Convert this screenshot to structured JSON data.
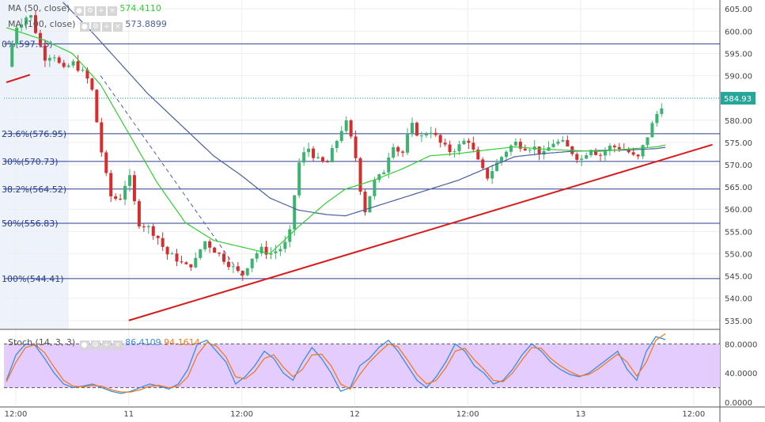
{
  "colors": {
    "up": "#26a69a",
    "up_candle": "#3cb371",
    "down": "#d32f2f",
    "ma50": "#33cc33",
    "ma100": "#4a5fa0",
    "fib": "#2a3f8f",
    "trend": "#d81b1b",
    "stoch_k": "#3a8de0",
    "stoch_d": "#f07a20",
    "stoch_band": "#e4ccff",
    "price_tag": "#26a69a"
  },
  "legend": {
    "ma50": {
      "label": "MA (50, close)",
      "value": "574.4110"
    },
    "ma100": {
      "label": "MA (100, close)",
      "value": "573.8899"
    },
    "stoch": {
      "label": "Stoch (14, 3, 3)",
      "k_value": "86.4109",
      "d_value": "94.1614"
    }
  },
  "chart_data": [
    {
      "type": "candlestick",
      "last_price": "584.93",
      "ylim": [
        533,
        607
      ],
      "yticks": [
        535,
        540,
        545,
        550,
        555,
        560,
        565,
        570,
        575,
        580,
        585,
        590,
        595,
        600,
        605
      ],
      "ytick_labels": [
        "535.00",
        "540.00",
        "545.00",
        "550.00",
        "555.00",
        "560.00",
        "565.00",
        "570.00",
        "575.00",
        "580.00",
        "585.00",
        "590.00",
        "595.00",
        "600.00",
        "605.00"
      ],
      "xticks": [
        {
          "label": "12:00",
          "t": 0
        },
        {
          "label": "11",
          "t": 12
        },
        {
          "label": "12:00",
          "t": 24
        },
        {
          "label": "12",
          "t": 36
        },
        {
          "label": "12:00",
          "t": 48
        },
        {
          "label": "13",
          "t": 60
        },
        {
          "label": "12:00",
          "t": 72
        }
      ],
      "x_range_hours": [
        -1,
        75.5
      ],
      "fib_levels": [
        {
          "label": "0%(597.16)",
          "value": 597.16
        },
        {
          "label": "23.6%(576.95)",
          "value": 576.95
        },
        {
          "label": "30%(570.73)",
          "value": 570.73
        },
        {
          "label": "38.2%(564.52)",
          "value": 564.52
        },
        {
          "label": "50%(556.83)",
          "value": 556.83
        },
        {
          "label": "100%(544.41)",
          "value": 544.41
        }
      ],
      "trendlines": [
        {
          "name": "support",
          "from": [
            12,
            535.0
          ],
          "to": [
            74,
            574.5
          ]
        },
        {
          "name": "early",
          "from": [
            -1,
            588.5
          ],
          "to": [
            1.5,
            590.2
          ]
        }
      ],
      "ohlc_anchors": [
        [
          -0.9,
          592
        ],
        [
          0,
          601
        ],
        [
          1.5,
          604
        ],
        [
          3,
          594
        ],
        [
          4,
          595
        ],
        [
          5,
          591
        ],
        [
          6,
          593
        ],
        [
          7,
          591
        ],
        [
          8,
          588
        ],
        [
          9,
          574
        ],
        [
          10,
          563
        ],
        [
          11,
          562
        ],
        [
          12,
          568
        ],
        [
          13,
          557
        ],
        [
          14,
          556
        ],
        [
          15,
          554
        ],
        [
          16,
          550
        ],
        [
          17,
          549
        ],
        [
          18,
          547
        ],
        [
          19,
          548
        ],
        [
          20,
          553
        ],
        [
          21,
          551
        ],
        [
          22,
          549
        ],
        [
          23,
          547
        ],
        [
          24,
          545
        ],
        [
          25,
          549
        ],
        [
          26,
          551
        ],
        [
          27,
          550
        ],
        [
          28,
          551
        ],
        [
          29,
          553
        ],
        [
          30,
          570
        ],
        [
          31,
          574
        ],
        [
          32,
          571
        ],
        [
          33,
          570
        ],
        [
          34,
          575
        ],
        [
          35,
          580
        ],
        [
          36,
          573
        ],
        [
          37,
          559
        ],
        [
          38,
          566
        ],
        [
          39,
          568
        ],
        [
          40,
          575
        ],
        [
          41,
          572
        ],
        [
          42,
          579
        ],
        [
          43,
          576
        ],
        [
          44,
          578
        ],
        [
          45,
          575
        ],
        [
          46,
          573
        ],
        [
          47,
          574
        ],
        [
          48,
          576
        ],
        [
          49,
          571
        ],
        [
          50,
          567
        ],
        [
          51,
          570
        ],
        [
          52,
          573
        ],
        [
          53,
          575
        ],
        [
          54,
          574
        ],
        [
          55,
          574
        ],
        [
          56,
          572
        ],
        [
          57,
          575
        ],
        [
          58,
          575
        ],
        [
          59,
          573
        ],
        [
          60,
          571
        ],
        [
          61,
          574
        ],
        [
          62,
          572
        ],
        [
          63,
          574
        ],
        [
          64,
          574
        ],
        [
          65,
          573
        ],
        [
          66,
          571
        ],
        [
          67,
          576
        ],
        [
          68,
          581
        ],
        [
          69,
          585
        ]
      ],
      "ma50_anchors": [
        [
          -1,
          600.8
        ],
        [
          3,
          598.0
        ],
        [
          6,
          595.0
        ],
        [
          9,
          588.0
        ],
        [
          12,
          577.0
        ],
        [
          15,
          566.0
        ],
        [
          18,
          557.0
        ],
        [
          21,
          553.0
        ],
        [
          24,
          551.5
        ],
        [
          27,
          550.0
        ],
        [
          30,
          556.0
        ],
        [
          33,
          561.5
        ],
        [
          35,
          564.5
        ],
        [
          38,
          566.5
        ],
        [
          41,
          569.0
        ],
        [
          44,
          572.0
        ],
        [
          47,
          572.5
        ],
        [
          50,
          573.3
        ],
        [
          53,
          574.0
        ],
        [
          56,
          573.5
        ],
        [
          59,
          573.2
        ],
        [
          62,
          573.0
        ],
        [
          65,
          573.5
        ],
        [
          68,
          574.0
        ],
        [
          69,
          574.4
        ]
      ],
      "ma100_anchors": [
        [
          5,
          606.5
        ],
        [
          8,
          600.0
        ],
        [
          11,
          593.0
        ],
        [
          14,
          586.0
        ],
        [
          18,
          578.0
        ],
        [
          21,
          572.0
        ],
        [
          24,
          567.5
        ],
        [
          27,
          562.5
        ],
        [
          30,
          559.8
        ],
        [
          33,
          558.8
        ],
        [
          35,
          558.5
        ],
        [
          38,
          560.5
        ],
        [
          41,
          562.5
        ],
        [
          44,
          564.5
        ],
        [
          47,
          566.5
        ],
        [
          50,
          569.2
        ],
        [
          53,
          571.8
        ],
        [
          56,
          572.5
        ],
        [
          59,
          573.0
        ],
        [
          62,
          573.2
        ],
        [
          65,
          573.3
        ],
        [
          68,
          573.6
        ],
        [
          69,
          573.9
        ]
      ]
    },
    {
      "type": "line",
      "title": "Stoch (14, 3, 3)",
      "ylim": [
        0,
        100
      ],
      "yticks": [
        0,
        40,
        80
      ],
      "ytick_labels": [
        "0.0000",
        "40.0000",
        "80.0000"
      ],
      "band": [
        20,
        80
      ],
      "series": [
        {
          "name": "%K",
          "values": [
            30,
            65,
            80,
            78,
            60,
            40,
            25,
            20,
            22,
            25,
            20,
            15,
            12,
            15,
            20,
            25,
            22,
            18,
            25,
            45,
            80,
            85,
            70,
            55,
            25,
            35,
            50,
            70,
            60,
            40,
            30,
            55,
            75,
            60,
            40,
            15,
            20,
            50,
            60,
            75,
            85,
            70,
            50,
            30,
            20,
            35,
            55,
            80,
            70,
            50,
            40,
            25,
            30,
            45,
            65,
            80,
            70,
            55,
            45,
            38,
            35,
            40,
            50,
            60,
            70,
            45,
            30,
            70,
            90,
            86
          ]
        },
        {
          "name": "%D",
          "values": [
            28,
            55,
            75,
            79,
            68,
            48,
            30,
            22,
            21,
            23,
            22,
            17,
            14,
            14,
            17,
            22,
            23,
            20,
            22,
            35,
            65,
            82,
            77,
            62,
            35,
            32,
            42,
            60,
            65,
            48,
            35,
            45,
            65,
            66,
            50,
            25,
            18,
            38,
            55,
            68,
            80,
            76,
            58,
            38,
            25,
            30,
            47,
            70,
            74,
            58,
            45,
            30,
            28,
            40,
            58,
            75,
            74,
            60,
            50,
            42,
            36,
            38,
            46,
            56,
            66,
            55,
            36,
            55,
            85,
            94
          ]
        }
      ]
    }
  ]
}
